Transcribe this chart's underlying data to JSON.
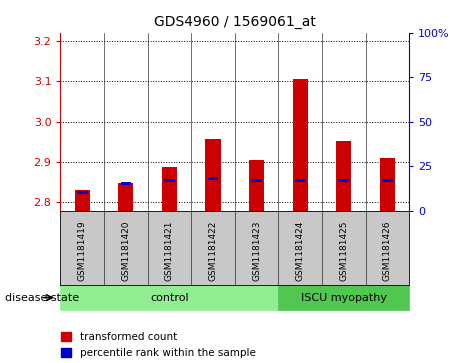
{
  "title": "GDS4960 / 1569061_at",
  "samples": [
    "GSM1181419",
    "GSM1181420",
    "GSM1181421",
    "GSM1181422",
    "GSM1181423",
    "GSM1181424",
    "GSM1181425",
    "GSM1181426"
  ],
  "transformed_count": [
    2.832,
    2.848,
    2.888,
    2.958,
    2.905,
    3.105,
    2.953,
    2.91
  ],
  "percentile_rank": [
    10,
    15,
    17,
    18,
    17,
    17,
    17,
    17
  ],
  "ylim_left": [
    2.78,
    3.22
  ],
  "ylim_right": [
    0,
    100
  ],
  "yticks_left": [
    2.8,
    2.9,
    3.0,
    3.1,
    3.2
  ],
  "yticks_right": [
    0,
    25,
    50,
    75,
    100
  ],
  "bar_bottom": 2.78,
  "bar_width": 0.35,
  "red_color": "#cc0000",
  "blue_color": "#0000cc",
  "control_n": 5,
  "iscu_n": 3,
  "control_label": "control",
  "iscu_label": "ISCU myopathy",
  "disease_state_label": "disease state",
  "legend_red_label": "transformed count",
  "legend_blue_label": "percentile rank within the sample",
  "control_bg": "#90ee90",
  "iscu_bg": "#50c850",
  "label_area_bg": "#c8c8c8"
}
